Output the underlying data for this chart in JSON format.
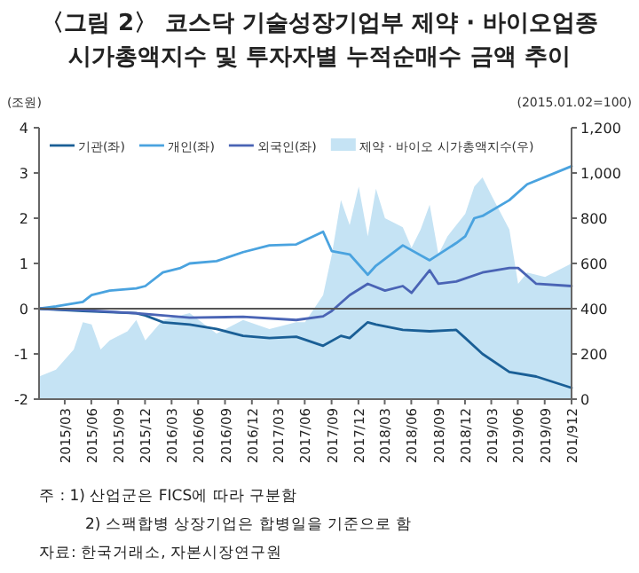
{
  "chart_data": {
    "type": "line",
    "title": "〈그림 2〉 코스닥 기술성장기업부 제약 · 바이오업종\n시가총액지수 및 투자자별 누적순매수 금액 추이",
    "ylabel": "(조원)",
    "y2label": "(2015.01.02=100)",
    "xlim": [
      "2015-01-02",
      "2019-12-31"
    ],
    "xticks": [
      {
        "value": "2015-03-31",
        "label": "2015/03"
      },
      {
        "value": "2015-06-30",
        "label": "2015/06"
      },
      {
        "value": "2015-09-30",
        "label": "2015/09"
      },
      {
        "value": "2015-12-31",
        "label": "2015/12"
      },
      {
        "value": "2016-03-31",
        "label": "2016/03"
      },
      {
        "value": "2016-06-30",
        "label": "2016/06"
      },
      {
        "value": "2016-09-30",
        "label": "2016/09"
      },
      {
        "value": "2016-12-31",
        "label": "2016/12"
      },
      {
        "value": "2017-03-31",
        "label": "2017/03"
      },
      {
        "value": "2017-06-30",
        "label": "2017/06"
      },
      {
        "value": "2017-09-30",
        "label": "2017/09"
      },
      {
        "value": "2017-12-31",
        "label": "2017/12"
      },
      {
        "value": "2018-03-31",
        "label": "2018/03"
      },
      {
        "value": "2018-06-30",
        "label": "2018/06"
      },
      {
        "value": "2018-09-30",
        "label": "2018/09"
      },
      {
        "value": "2018-12-31",
        "label": "2018/12"
      },
      {
        "value": "2019-03-31",
        "label": "2019/03"
      },
      {
        "value": "2019-06-30",
        "label": "2019/06"
      },
      {
        "value": "2019-09-30",
        "label": "2019/09"
      },
      {
        "value": "2019-12-31",
        "label": "201/912"
      }
    ],
    "ylim": [
      -2,
      4
    ],
    "yticks": [
      -2,
      -1,
      0,
      1,
      2,
      3,
      4
    ],
    "y2lim": [
      0,
      1200
    ],
    "y2ticks": [
      0,
      200,
      400,
      600,
      800,
      {
        "value": 1000,
        "label": "1,000"
      },
      {
        "value": 1200,
        "label": "1,200"
      }
    ],
    "legend": "top left",
    "line_style": "solid",
    "ref_lines": [
      {
        "axis": "y",
        "value": 0,
        "color": "#555555"
      }
    ],
    "series": [
      {
        "name": "제약 · 바이오 시가총액지수(우)",
        "type": "area",
        "axis": "y2",
        "color": "#c5e3f4",
        "x": [
          "2015-01-02",
          "2015-03",
          "2015-05",
          "2015-06",
          "2015-07",
          "2015-08",
          "2015-09",
          "2015-11",
          "2015-12",
          "2016-01",
          "2016-03",
          "2016-06",
          "2016-09",
          "2016-12",
          "2017-03",
          "2017-06",
          "2017-07",
          "2017-09",
          "2017-10",
          "2017-11",
          "2017-12",
          "2018-01",
          "2018-02",
          "2018-03",
          "2018-04",
          "2018-06",
          "2018-07",
          "2018-08",
          "2018-09",
          "2018-10",
          "2018-11",
          "2019-01",
          "2019-02",
          "2019-03",
          "2019-04",
          "2019-06",
          "2019-07",
          "2019-08",
          "2019-10",
          "2019-12-31"
        ],
        "values": [
          100,
          130,
          220,
          340,
          330,
          220,
          260,
          300,
          350,
          260,
          350,
          380,
          290,
          350,
          310,
          340,
          340,
          460,
          640,
          880,
          770,
          940,
          720,
          930,
          800,
          760,
          670,
          750,
          860,
          640,
          720,
          820,
          940,
          980,
          900,
          750,
          510,
          560,
          540,
          600
        ]
      },
      {
        "name": "기관(좌)",
        "color": "#1a5f96",
        "x": [
          "2015-01-02",
          "2015-06",
          "2015-12",
          "2016-01",
          "2016-03",
          "2016-06",
          "2016-09",
          "2016-12",
          "2017-03",
          "2017-06",
          "2017-09",
          "2017-11",
          "2017-12",
          "2018-02",
          "2018-03",
          "2018-06",
          "2018-09",
          "2018-12",
          "2019-01",
          "2019-03",
          "2019-06",
          "2019-09",
          "2019-12-31"
        ],
        "values": [
          0,
          -0.05,
          -0.1,
          -0.15,
          -0.3,
          -0.35,
          -0.45,
          -0.6,
          -0.65,
          -0.62,
          -0.82,
          -0.6,
          -0.65,
          -0.3,
          -0.35,
          -0.47,
          -0.5,
          -0.47,
          -0.65,
          -1.0,
          -1.4,
          -1.5,
          -1.75
        ]
      },
      {
        "name": "개인(좌)",
        "color": "#4aa3df",
        "x": [
          "2015-01-02",
          "2015-03",
          "2015-06",
          "2015-07",
          "2015-09",
          "2015-12",
          "2016-01",
          "2016-03",
          "2016-05",
          "2016-06",
          "2016-09",
          "2016-12",
          "2017-03",
          "2017-06",
          "2017-09",
          "2017-10",
          "2017-12",
          "2018-02",
          "2018-03",
          "2018-06",
          "2018-09",
          "2018-12",
          "2019-01",
          "2019-02",
          "2019-03",
          "2019-06",
          "2019-08",
          "2019-12-31"
        ],
        "values": [
          0,
          0.05,
          0.15,
          0.3,
          0.4,
          0.45,
          0.5,
          0.8,
          0.9,
          1.0,
          1.05,
          1.25,
          1.4,
          1.42,
          1.7,
          1.27,
          1.2,
          0.75,
          0.95,
          1.4,
          1.07,
          1.45,
          1.6,
          2.0,
          2.05,
          2.4,
          2.75,
          3.15
        ]
      },
      {
        "name": "외국인(좌)",
        "color": "#4a64b5",
        "x": [
          "2015-01-02",
          "2015-06",
          "2015-12",
          "2016-06",
          "2016-12",
          "2017-06",
          "2017-09",
          "2017-10",
          "2017-12",
          "2018-02",
          "2018-04",
          "2018-06",
          "2018-07",
          "2018-09",
          "2018-10",
          "2018-12",
          "2019-03",
          "2019-06",
          "2019-07",
          "2019-09",
          "2019-12-31"
        ],
        "values": [
          0,
          -0.03,
          -0.1,
          -0.2,
          -0.18,
          -0.25,
          -0.17,
          -0.05,
          0.3,
          0.55,
          0.4,
          0.5,
          0.35,
          0.85,
          0.55,
          0.6,
          0.8,
          0.9,
          0.9,
          0.55,
          0.5
        ]
      }
    ],
    "annotations": [
      "주 : 1) 산업군은 FICS에 따라 구분함",
      "2) 스팩합병 상장기업은 합병일을 기준으로 함",
      "자료: 한국거래소, 자본시장연구원"
    ]
  }
}
